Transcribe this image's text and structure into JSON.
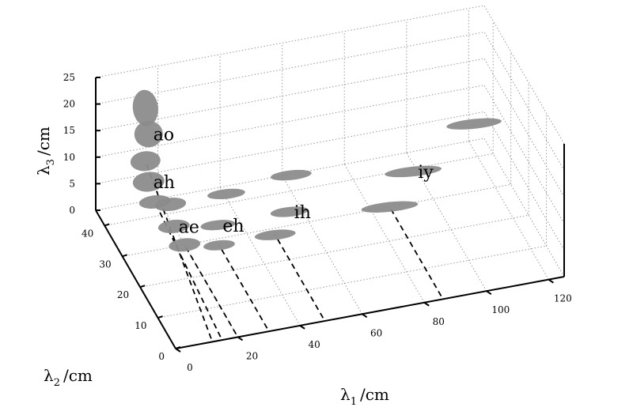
{
  "chart_data": {
    "type": "scatter",
    "projection": "3d",
    "x_axis": {
      "label_symbol": "λ",
      "label_sub": "1",
      "label_unit": "/cm",
      "ticks": [
        "0",
        "20",
        "40",
        "60",
        "80",
        "100",
        "120"
      ],
      "range": [
        0,
        125
      ]
    },
    "y_axis": {
      "label_symbol": "λ",
      "label_sub": "2",
      "label_unit": "/cm",
      "ticks": [
        "0",
        "10",
        "20",
        "30",
        "40"
      ],
      "range": [
        0,
        45
      ]
    },
    "z_axis": {
      "label_symbol": "λ",
      "label_sub": "3",
      "label_unit": "/cm",
      "ticks": [
        "0",
        "5",
        "10",
        "15",
        "20",
        "25"
      ],
      "range": [
        0,
        25
      ]
    },
    "grid": true,
    "blob_color": "#8c8c8c",
    "vowels": [
      {
        "label": "ao",
        "ellipses": [
          {
            "x": 12,
            "y": 38,
            "z": 22,
            "w": 6,
            "h": 10
          },
          {
            "x": 13,
            "y": 38,
            "z": 17,
            "w": 8,
            "h": 7
          },
          {
            "x": 12,
            "y": 38,
            "z": 12,
            "w": 9,
            "h": 5
          }
        ]
      },
      {
        "label": "ah",
        "ellipses": [
          {
            "x": 13,
            "y": 38,
            "z": 8,
            "w": 10,
            "h": 5
          },
          {
            "x": 15,
            "y": 38,
            "z": 4,
            "w": 10,
            "h": 3
          }
        ]
      },
      {
        "label": "ae",
        "ellipses": [
          {
            "x": 20,
            "y": 38,
            "z": 3,
            "w": 10,
            "h": 3
          },
          {
            "x": 20,
            "y": 36,
            "z": 0,
            "w": 10,
            "h": 3
          },
          {
            "x": 20,
            "y": 30,
            "z": 0,
            "w": 10,
            "h": 3
          }
        ]
      },
      {
        "label": "eh",
        "ellipses": [
          {
            "x": 38,
            "y": 38,
            "z": 3,
            "w": 14,
            "h": 2
          },
          {
            "x": 33,
            "y": 34,
            "z": 0,
            "w": 12,
            "h": 2
          },
          {
            "x": 30,
            "y": 28,
            "z": 0,
            "w": 10,
            "h": 2
          }
        ]
      },
      {
        "label": "ih",
        "ellipses": [
          {
            "x": 60,
            "y": 40,
            "z": 3,
            "w": 16,
            "h": 2
          },
          {
            "x": 56,
            "y": 34,
            "z": 0,
            "w": 14,
            "h": 2
          },
          {
            "x": 48,
            "y": 28,
            "z": 0,
            "w": 16,
            "h": 2
          }
        ]
      },
      {
        "label": "iy",
        "ellipses": [
          {
            "x": 120,
            "y": 42,
            "z": 5,
            "w": 25,
            "h": 2
          },
          {
            "x": 97,
            "y": 36,
            "z": 2,
            "w": 26,
            "h": 2
          },
          {
            "x": 86,
            "y": 30,
            "z": 0,
            "w": 26,
            "h": 2
          }
        ]
      }
    ]
  }
}
